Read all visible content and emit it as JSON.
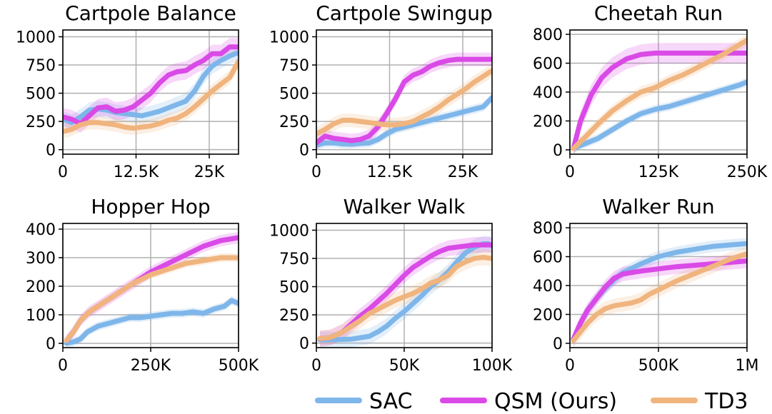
{
  "figure": {
    "background": "#ffffff"
  },
  "series_styles": [
    {
      "key": "SAC",
      "name": "SAC",
      "color": "#7eb6ea"
    },
    {
      "key": "QSM",
      "name": "QSM (Ours)",
      "color": "#d94ae6"
    },
    {
      "key": "TD3",
      "name": "TD3",
      "color": "#f0b47e"
    }
  ],
  "legend": {
    "position": "bottom-right",
    "entries": [
      {
        "name": "SAC",
        "color": "#7eb6ea"
      },
      {
        "name": "QSM (Ours)",
        "color": "#d94ae6"
      },
      {
        "name": "TD3",
        "color": "#f0b47e"
      }
    ]
  },
  "chart_data": [
    {
      "type": "line",
      "title": "Cartpole Balance",
      "xlim": [
        0,
        30000
      ],
      "ylim": [
        -40,
        1060
      ],
      "xticks": [
        0,
        12500,
        25000
      ],
      "xtick_labels": [
        "0",
        "12.5K",
        "25K"
      ],
      "yticks": [
        0,
        250,
        500,
        750,
        1000
      ],
      "ytick_labels": [
        "0",
        "250",
        "500",
        "750",
        "1000"
      ],
      "grid": true,
      "series": [
        {
          "name": "SAC",
          "x": [
            0,
            1500,
            3000,
            4500,
            6000,
            7500,
            9000,
            10500,
            12000,
            13500,
            15000,
            16500,
            18000,
            19500,
            21000,
            22500,
            24000,
            25500,
            27000,
            28500,
            30000
          ],
          "y": [
            270,
            240,
            290,
            350,
            360,
            350,
            330,
            320,
            310,
            300,
            320,
            340,
            370,
            400,
            430,
            520,
            650,
            740,
            790,
            830,
            860
          ],
          "band": 70
        },
        {
          "name": "QSM (Ours)",
          "x": [
            0,
            1500,
            3000,
            4500,
            6000,
            7500,
            9000,
            10500,
            12000,
            13500,
            15000,
            16500,
            18000,
            19500,
            21000,
            22500,
            24000,
            25500,
            27000,
            28500,
            30000
          ],
          "y": [
            290,
            270,
            230,
            300,
            370,
            380,
            340,
            350,
            380,
            440,
            500,
            590,
            660,
            690,
            700,
            750,
            790,
            850,
            850,
            910,
            910
          ],
          "band": 80
        },
        {
          "name": "TD3",
          "x": [
            0,
            1500,
            3000,
            4500,
            6000,
            7500,
            9000,
            10500,
            12000,
            13500,
            15000,
            16500,
            18000,
            19500,
            21000,
            22500,
            24000,
            25500,
            27000,
            28500,
            30000
          ],
          "y": [
            160,
            180,
            220,
            240,
            240,
            230,
            220,
            200,
            190,
            200,
            210,
            230,
            260,
            280,
            320,
            380,
            450,
            520,
            580,
            640,
            780
          ],
          "band": 60
        }
      ]
    },
    {
      "type": "line",
      "title": "Cartpole Swingup",
      "xlim": [
        0,
        30000
      ],
      "ylim": [
        -40,
        1060
      ],
      "xticks": [
        0,
        12500,
        25000
      ],
      "xtick_labels": [
        "0",
        "12.5K",
        "25K"
      ],
      "yticks": [
        0,
        250,
        500,
        750,
        1000
      ],
      "ytick_labels": [
        "0",
        "250",
        "500",
        "750",
        "1000"
      ],
      "grid": true,
      "series": [
        {
          "name": "SAC",
          "x": [
            0,
            1500,
            3000,
            4500,
            6000,
            7500,
            9000,
            10500,
            12000,
            13500,
            15000,
            16500,
            18000,
            19500,
            21000,
            22500,
            24000,
            25500,
            27000,
            28500,
            30000
          ],
          "y": [
            40,
            60,
            60,
            50,
            50,
            55,
            60,
            90,
            140,
            180,
            200,
            220,
            240,
            260,
            280,
            300,
            320,
            340,
            360,
            380,
            460
          ],
          "band": 40
        },
        {
          "name": "QSM (Ours)",
          "x": [
            0,
            1500,
            3000,
            4500,
            6000,
            7500,
            9000,
            10500,
            12000,
            13500,
            15000,
            16500,
            18000,
            19500,
            21000,
            22500,
            24000,
            25500,
            27000,
            28500,
            30000
          ],
          "y": [
            60,
            120,
            100,
            90,
            80,
            90,
            120,
            200,
            320,
            450,
            600,
            660,
            690,
            740,
            770,
            790,
            800,
            800,
            800,
            800,
            800
          ],
          "band": 60
        },
        {
          "name": "TD3",
          "x": [
            0,
            1500,
            3000,
            4500,
            6000,
            7500,
            9000,
            10500,
            12000,
            13500,
            15000,
            16500,
            18000,
            19500,
            21000,
            22500,
            24000,
            25500,
            27000,
            28500,
            30000
          ],
          "y": [
            140,
            180,
            230,
            260,
            260,
            250,
            240,
            230,
            220,
            220,
            230,
            250,
            290,
            330,
            380,
            440,
            490,
            540,
            600,
            650,
            700
          ],
          "band": 60
        }
      ]
    },
    {
      "type": "line",
      "title": "Cheetah Run",
      "xlim": [
        0,
        250000
      ],
      "ylim": [
        -30,
        830
      ],
      "xticks": [
        0,
        125000,
        250000
      ],
      "xtick_labels": [
        "0",
        "125K",
        "250K"
      ],
      "yticks": [
        0,
        200,
        400,
        600,
        800
      ],
      "ytick_labels": [
        "0",
        "200",
        "400",
        "600",
        "800"
      ],
      "grid": true,
      "series": [
        {
          "name": "SAC",
          "x": [
            5000,
            20000,
            40000,
            60000,
            80000,
            100000,
            120000,
            140000,
            160000,
            180000,
            200000,
            220000,
            240000,
            250000
          ],
          "y": [
            10,
            40,
            80,
            140,
            200,
            250,
            280,
            300,
            330,
            360,
            390,
            420,
            450,
            470
          ],
          "band": 30
        },
        {
          "name": "QSM (Ours)",
          "x": [
            5000,
            15000,
            30000,
            45000,
            60000,
            80000,
            100000,
            120000,
            140000,
            160000,
            180000,
            200000,
            220000,
            240000,
            250000
          ],
          "y": [
            10,
            200,
            380,
            500,
            570,
            630,
            660,
            670,
            670,
            670,
            670,
            670,
            670,
            670,
            670
          ],
          "band": 70
        },
        {
          "name": "TD3",
          "x": [
            5000,
            20000,
            40000,
            60000,
            80000,
            100000,
            120000,
            140000,
            160000,
            180000,
            200000,
            220000,
            240000,
            250000
          ],
          "y": [
            10,
            80,
            180,
            270,
            340,
            400,
            430,
            480,
            520,
            570,
            620,
            670,
            730,
            760
          ],
          "band": 40
        }
      ]
    },
    {
      "type": "line",
      "title": "Hopper Hop",
      "xlim": [
        0,
        500000
      ],
      "ylim": [
        -15,
        420
      ],
      "xticks": [
        0,
        250000,
        500000
      ],
      "xtick_labels": [
        "0",
        "250K",
        "500K"
      ],
      "yticks": [
        0,
        100,
        200,
        300,
        400
      ],
      "ytick_labels": [
        "0",
        "100",
        "200",
        "300",
        "400"
      ],
      "grid": true,
      "series": [
        {
          "name": "SAC",
          "x": [
            10000,
            30000,
            50000,
            70000,
            100000,
            130000,
            160000,
            190000,
            220000,
            250000,
            280000,
            310000,
            340000,
            370000,
            400000,
            430000,
            460000,
            480000,
            500000
          ],
          "y": [
            0,
            5,
            15,
            40,
            60,
            70,
            80,
            90,
            90,
            95,
            100,
            105,
            105,
            110,
            105,
            120,
            130,
            150,
            140
          ],
          "band": 15
        },
        {
          "name": "QSM (Ours)",
          "x": [
            10000,
            30000,
            50000,
            75000,
            100000,
            150000,
            200000,
            250000,
            300000,
            350000,
            400000,
            450000,
            500000
          ],
          "y": [
            10,
            40,
            80,
            110,
            130,
            170,
            210,
            250,
            280,
            310,
            340,
            360,
            370
          ],
          "band": 20
        },
        {
          "name": "TD3",
          "x": [
            10000,
            30000,
            50000,
            75000,
            100000,
            150000,
            200000,
            250000,
            300000,
            350000,
            400000,
            450000,
            500000
          ],
          "y": [
            10,
            40,
            80,
            110,
            130,
            170,
            210,
            240,
            260,
            280,
            290,
            300,
            300
          ],
          "band": 15
        }
      ]
    },
    {
      "type": "line",
      "title": "Walker Walk",
      "xlim": [
        0,
        100000
      ],
      "ylim": [
        -40,
        1060
      ],
      "xticks": [
        0,
        50000,
        100000
      ],
      "xtick_labels": [
        "0",
        "50K",
        "100K"
      ],
      "yticks": [
        0,
        250,
        500,
        750,
        1000
      ],
      "ytick_labels": [
        "0",
        "250",
        "500",
        "750",
        "1000"
      ],
      "grid": true,
      "series": [
        {
          "name": "SAC",
          "x": [
            2000,
            10000,
            20000,
            30000,
            35000,
            40000,
            45000,
            50000,
            55000,
            60000,
            65000,
            70000,
            75000,
            80000,
            85000,
            90000,
            95000,
            98000,
            100000
          ],
          "y": [
            30,
            30,
            35,
            60,
            100,
            150,
            220,
            280,
            350,
            420,
            500,
            560,
            630,
            720,
            800,
            850,
            880,
            880,
            860
          ],
          "band": 70
        },
        {
          "name": "QSM (Ours)",
          "x": [
            2000,
            8000,
            15000,
            20000,
            25000,
            30000,
            35000,
            40000,
            45000,
            50000,
            55000,
            60000,
            65000,
            70000,
            75000,
            80000,
            85000,
            90000,
            95000,
            100000
          ],
          "y": [
            40,
            50,
            100,
            170,
            240,
            300,
            370,
            440,
            520,
            600,
            670,
            720,
            770,
            810,
            840,
            850,
            860,
            870,
            870,
            870
          ],
          "band": 70
        },
        {
          "name": "TD3",
          "x": [
            2000,
            8000,
            15000,
            20000,
            25000,
            30000,
            35000,
            40000,
            45000,
            50000,
            55000,
            60000,
            65000,
            70000,
            75000,
            80000,
            85000,
            90000,
            95000,
            100000
          ],
          "y": [
            40,
            50,
            100,
            150,
            200,
            260,
            300,
            340,
            380,
            410,
            440,
            480,
            530,
            560,
            600,
            680,
            720,
            750,
            760,
            750
          ],
          "band": 70
        }
      ]
    },
    {
      "type": "line",
      "title": "Walker Run",
      "xlim": [
        0,
        1000000
      ],
      "ylim": [
        -30,
        830
      ],
      "xticks": [
        0,
        500000,
        1000000
      ],
      "xtick_labels": [
        "0",
        "500K",
        "1M"
      ],
      "yticks": [
        0,
        200,
        400,
        600,
        800
      ],
      "ytick_labels": [
        "0",
        "200",
        "400",
        "600",
        "800"
      ],
      "grid": true,
      "series": [
        {
          "name": "SAC",
          "x": [
            20000,
            60000,
            100000,
            150000,
            200000,
            250000,
            300000,
            400000,
            500000,
            600000,
            700000,
            800000,
            900000,
            1000000
          ],
          "y": [
            30,
            140,
            230,
            310,
            380,
            440,
            490,
            550,
            600,
            630,
            650,
            670,
            680,
            690
          ],
          "band": 40
        },
        {
          "name": "QSM (Ours)",
          "x": [
            20000,
            60000,
            100000,
            150000,
            200000,
            250000,
            300000,
            400000,
            500000,
            600000,
            700000,
            800000,
            900000,
            1000000
          ],
          "y": [
            30,
            140,
            230,
            310,
            390,
            450,
            480,
            500,
            515,
            530,
            540,
            550,
            560,
            570
          ],
          "band": 50
        },
        {
          "name": "TD3",
          "x": [
            20000,
            60000,
            100000,
            150000,
            200000,
            250000,
            300000,
            350000,
            400000,
            450000,
            500000,
            550000,
            600000,
            700000,
            800000,
            900000,
            1000000
          ],
          "y": [
            20,
            80,
            140,
            200,
            240,
            260,
            270,
            280,
            300,
            340,
            370,
            400,
            430,
            480,
            530,
            580,
            620
          ],
          "band": 50
        }
      ]
    }
  ]
}
